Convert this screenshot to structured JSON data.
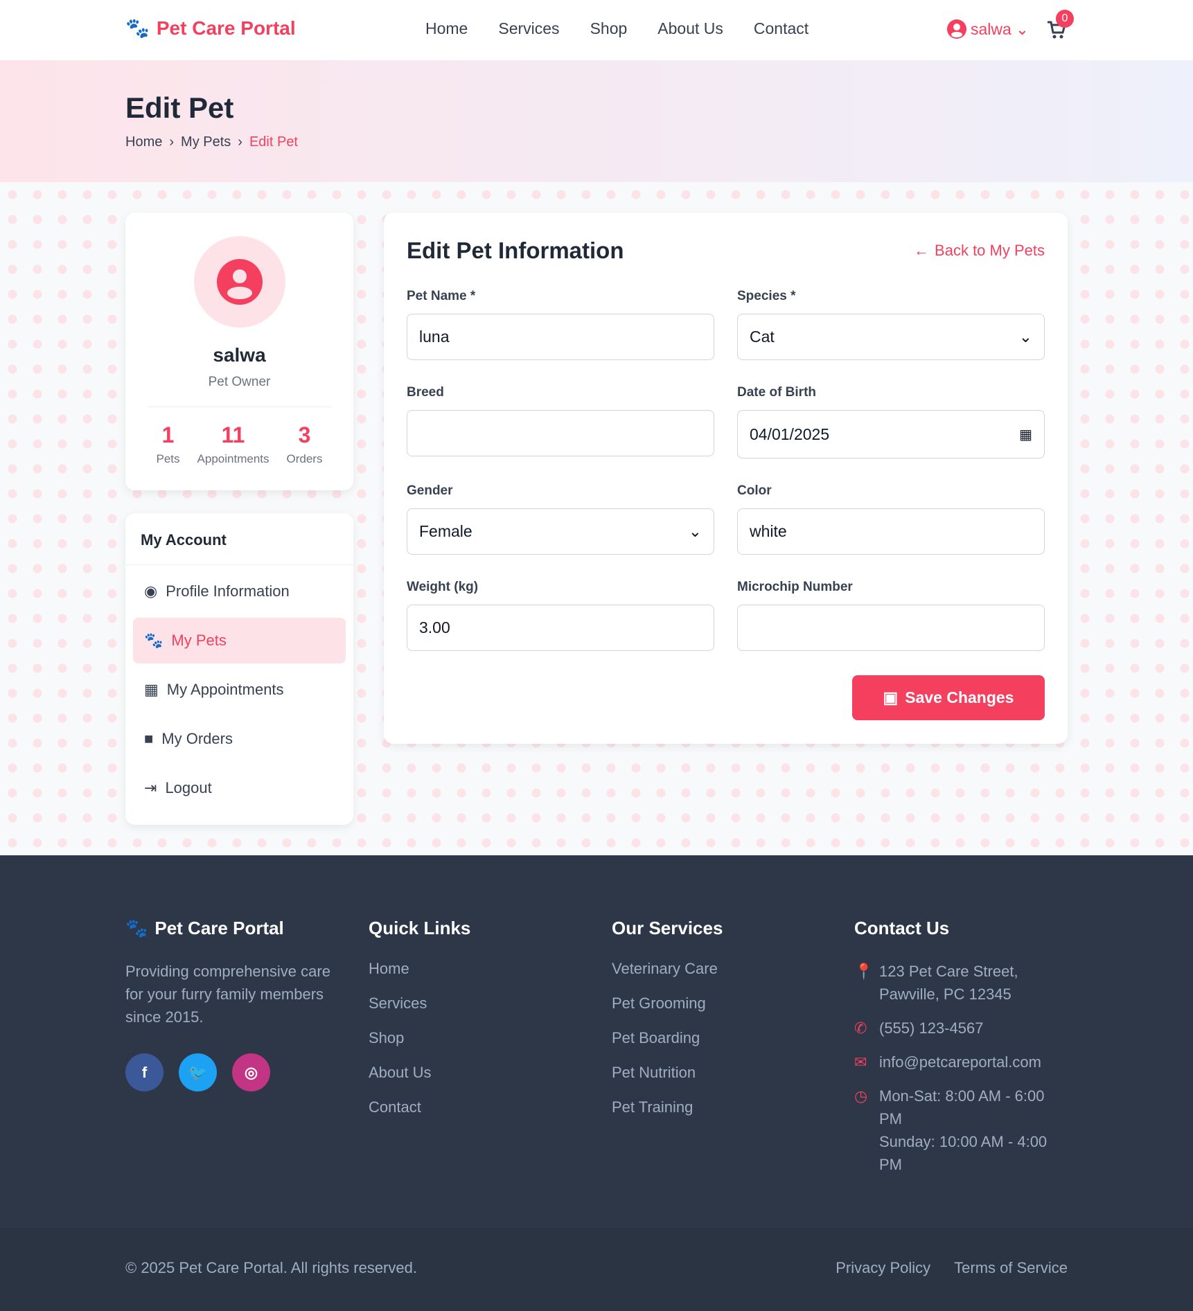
{
  "header": {
    "brand": "Pet Care Portal",
    "nav": [
      "Home",
      "Services",
      "Shop",
      "About Us",
      "Contact"
    ],
    "user": "salwa",
    "cart_count": "0"
  },
  "hero": {
    "title": "Edit Pet",
    "breadcrumb": [
      "Home",
      "My Pets",
      "Edit Pet"
    ]
  },
  "profile": {
    "name": "salwa",
    "role": "Pet Owner",
    "stats": [
      {
        "value": "1",
        "label": "Pets"
      },
      {
        "value": "11",
        "label": "Appointments"
      },
      {
        "value": "3",
        "label": "Orders"
      }
    ]
  },
  "account": {
    "title": "My Account",
    "items": [
      "Profile Information",
      "My Pets",
      "My Appointments",
      "My Orders",
      "Logout"
    ],
    "active": "My Pets"
  },
  "form": {
    "title": "Edit Pet Information",
    "back": "Back to My Pets",
    "fields": {
      "pet_name": {
        "label": "Pet Name *",
        "value": "luna"
      },
      "species": {
        "label": "Species *",
        "value": "Cat"
      },
      "breed": {
        "label": "Breed",
        "value": ""
      },
      "dob": {
        "label": "Date of Birth",
        "value": "04/01/2025"
      },
      "gender": {
        "label": "Gender",
        "value": "Female"
      },
      "color": {
        "label": "Color",
        "value": "white"
      },
      "weight": {
        "label": "Weight (kg)",
        "value": "3.00"
      },
      "microchip": {
        "label": "Microchip Number",
        "value": ""
      }
    },
    "save": "Save Changes"
  },
  "footer": {
    "brand": "Pet Care Portal",
    "description": "Providing comprehensive care for your furry family members since 2015.",
    "quick_links": {
      "title": "Quick Links",
      "items": [
        "Home",
        "Services",
        "Shop",
        "About Us",
        "Contact"
      ]
    },
    "services": {
      "title": "Our Services",
      "items": [
        "Veterinary Care",
        "Pet Grooming",
        "Pet Boarding",
        "Pet Nutrition",
        "Pet Training"
      ]
    },
    "contact": {
      "title": "Contact Us",
      "address": "123 Pet Care Street, Pawville, PC 12345",
      "phone": "(555) 123-4567",
      "email": "info@petcareportal.com",
      "hours1": "Mon-Sat: 8:00 AM - 6:00 PM",
      "hours2": "Sunday: 10:00 AM - 4:00 PM"
    },
    "copyright": "© 2025 Pet Care Portal. All rights reserved.",
    "privacy": "Privacy Policy",
    "terms": "Terms of Service"
  },
  "colors": {
    "accent": "#f43f5e",
    "footer": "#2d3748"
  }
}
